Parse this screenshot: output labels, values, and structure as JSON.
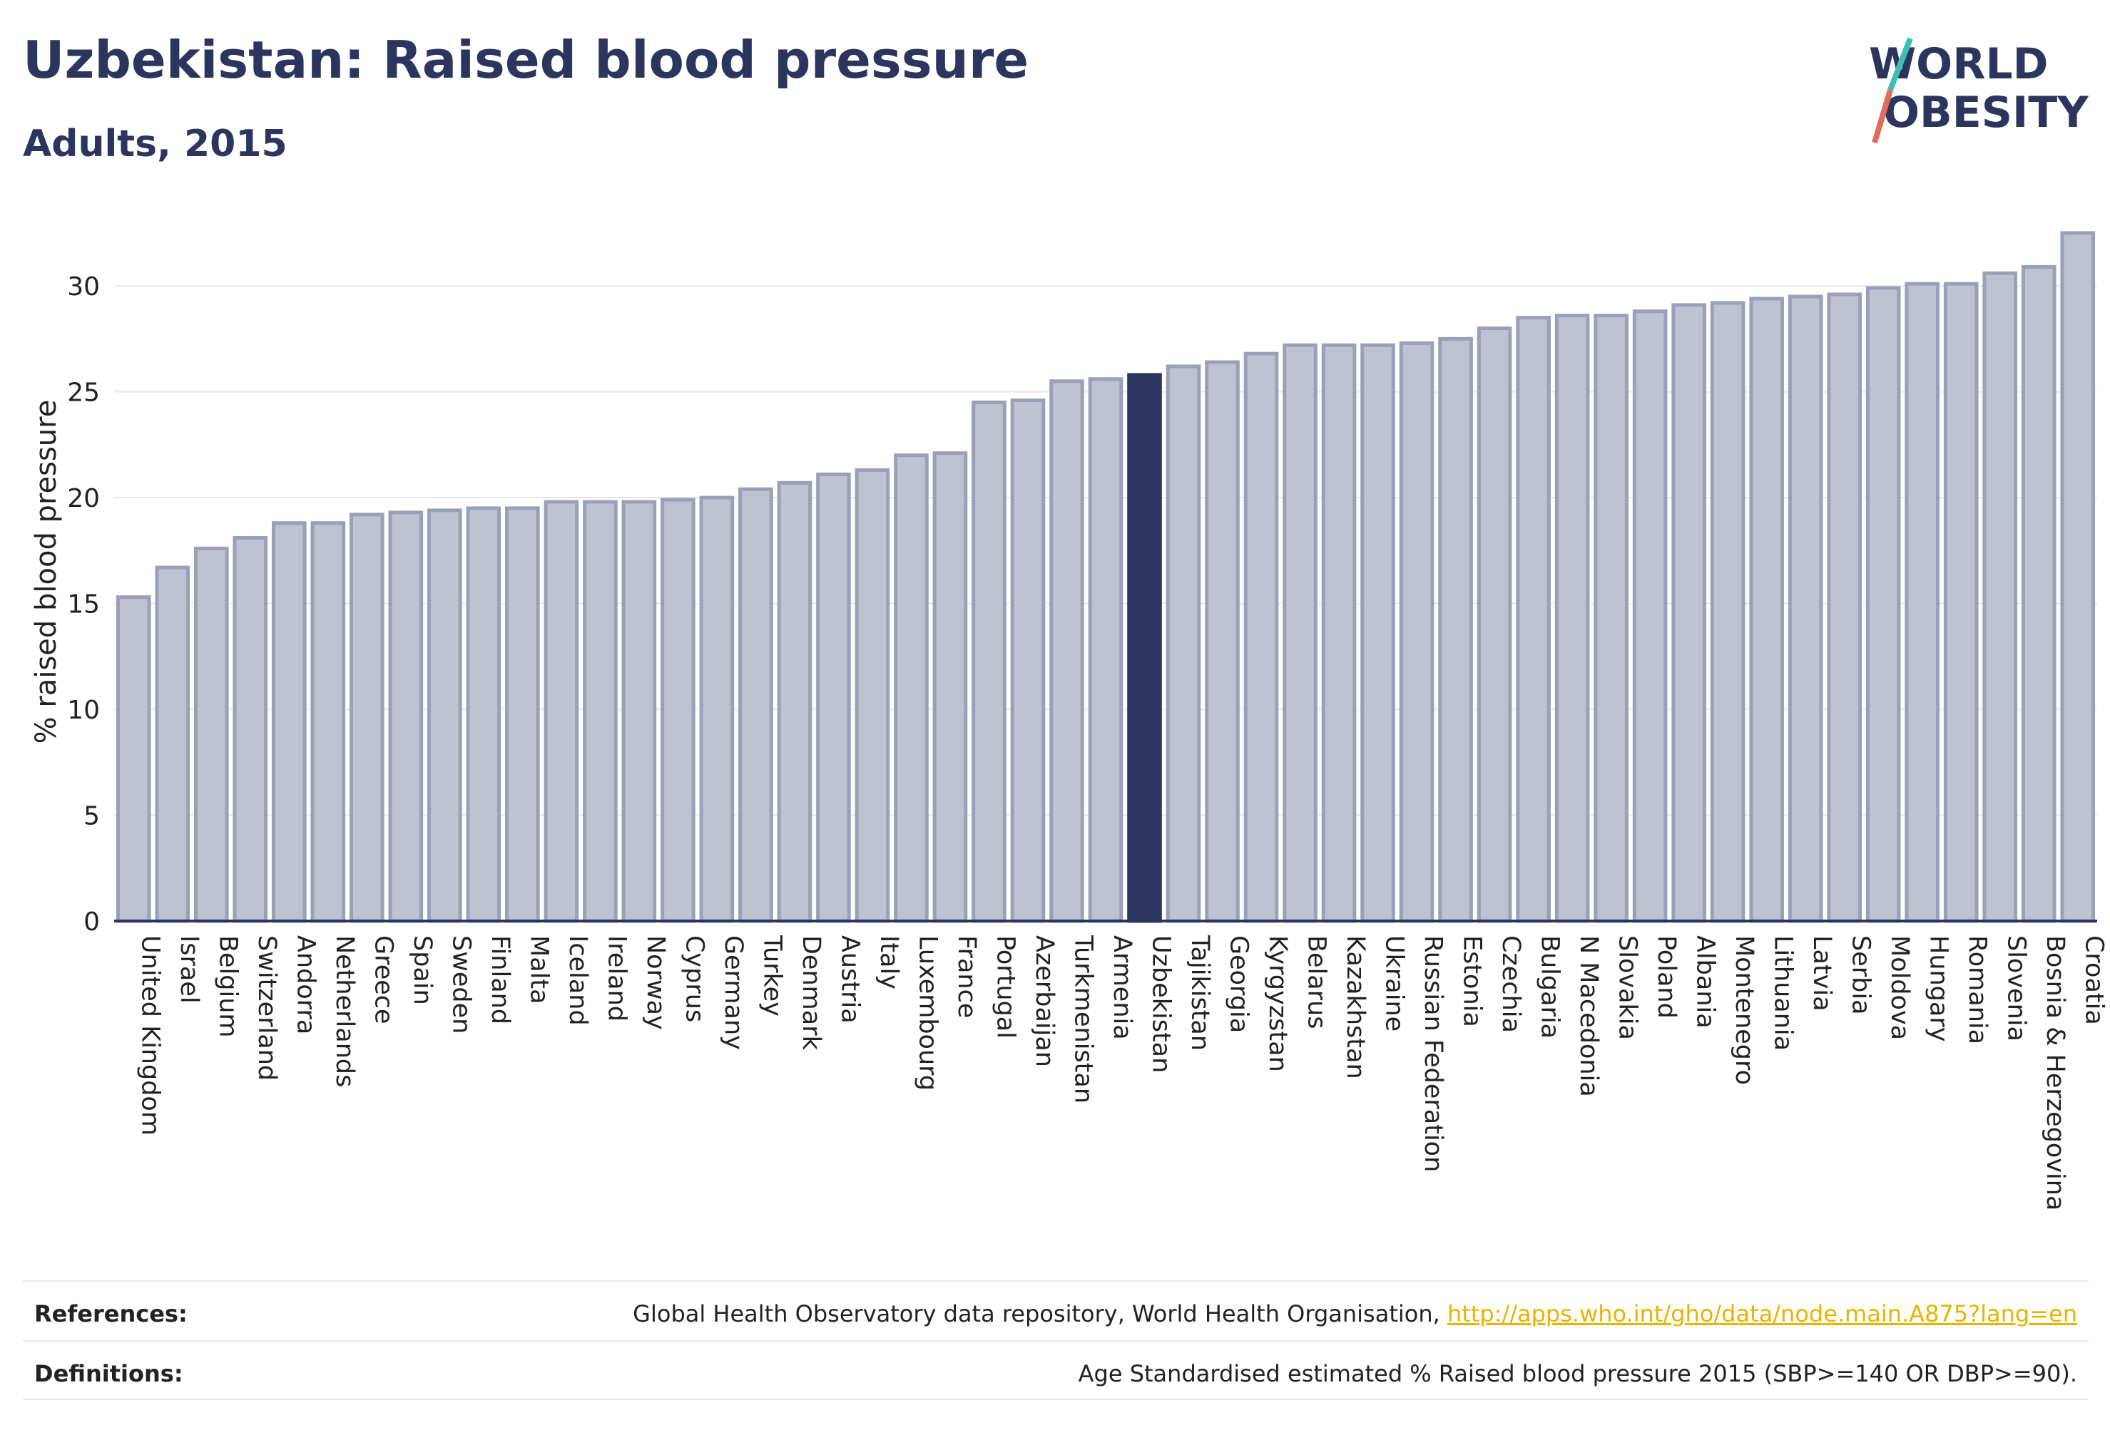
{
  "title": "Uzbekistan: Raised blood pressure",
  "subtitle": "Adults, 2015",
  "logo": {
    "line1": "WORLD",
    "line2": "OBESITY",
    "accent_teal": "#3fbfb8",
    "accent_red": "#e06c5a"
  },
  "colors": {
    "bar": "#bfc2d1",
    "bar_border": "#9aa0b8",
    "highlight": "#2b355e",
    "text": "#2b355e"
  },
  "chart_data": {
    "type": "bar",
    "ylabel": "% raised blood pressure",
    "ylim": [
      0,
      33
    ],
    "yticks": [
      0,
      5,
      10,
      15,
      20,
      25,
      30
    ],
    "grid": true,
    "highlight": "Uzbekistan",
    "categories": [
      "United Kingdom",
      "Israel",
      "Belgium",
      "Switzerland",
      "Andorra",
      "Netherlands",
      "Greece",
      "Spain",
      "Sweden",
      "Finland",
      "Malta",
      "Iceland",
      "Ireland",
      "Norway",
      "Cyprus",
      "Germany",
      "Turkey",
      "Denmark",
      "Austria",
      "Italy",
      "Luxembourg",
      "France",
      "Portugal",
      "Azerbaijan",
      "Turkmenistan",
      "Armenia",
      "Uzbekistan",
      "Tajikistan",
      "Georgia",
      "Kyrgyzstan",
      "Belarus",
      "Kazakhstan",
      "Ukraine",
      "Russian Federation",
      "Estonia",
      "Czechia",
      "Bulgaria",
      "N Macedonia",
      "Slovakia",
      "Poland",
      "Albania",
      "Montenegro",
      "Lithuania",
      "Latvia",
      "Serbia",
      "Moldova",
      "Hungary",
      "Romania",
      "Slovenia",
      "Bosnia & Herzegovina",
      "Croatia"
    ],
    "values": [
      15.3,
      16.7,
      17.6,
      18.1,
      18.8,
      18.8,
      19.2,
      19.3,
      19.4,
      19.5,
      19.5,
      19.8,
      19.8,
      19.8,
      19.9,
      20.0,
      20.4,
      20.7,
      21.1,
      21.3,
      22.0,
      22.1,
      24.5,
      24.6,
      25.5,
      25.6,
      25.8,
      26.2,
      26.4,
      26.8,
      27.2,
      27.2,
      27.2,
      27.3,
      27.5,
      28.0,
      28.5,
      28.6,
      28.6,
      28.8,
      29.1,
      29.2,
      29.4,
      29.5,
      29.6,
      29.9,
      30.1,
      30.1,
      30.6,
      30.9,
      32.5
    ]
  },
  "footer": {
    "references_label": "References:",
    "references_text": "Global Health Observatory data repository, World Health Organisation, ",
    "references_link": "http://apps.who.int/gho/data/node.main.A875?lang=en",
    "definitions_label": "Definitions:",
    "definitions_text": "Age Standardised estimated % Raised blood pressure 2015 (SBP>=140 OR DBP>=90)."
  }
}
